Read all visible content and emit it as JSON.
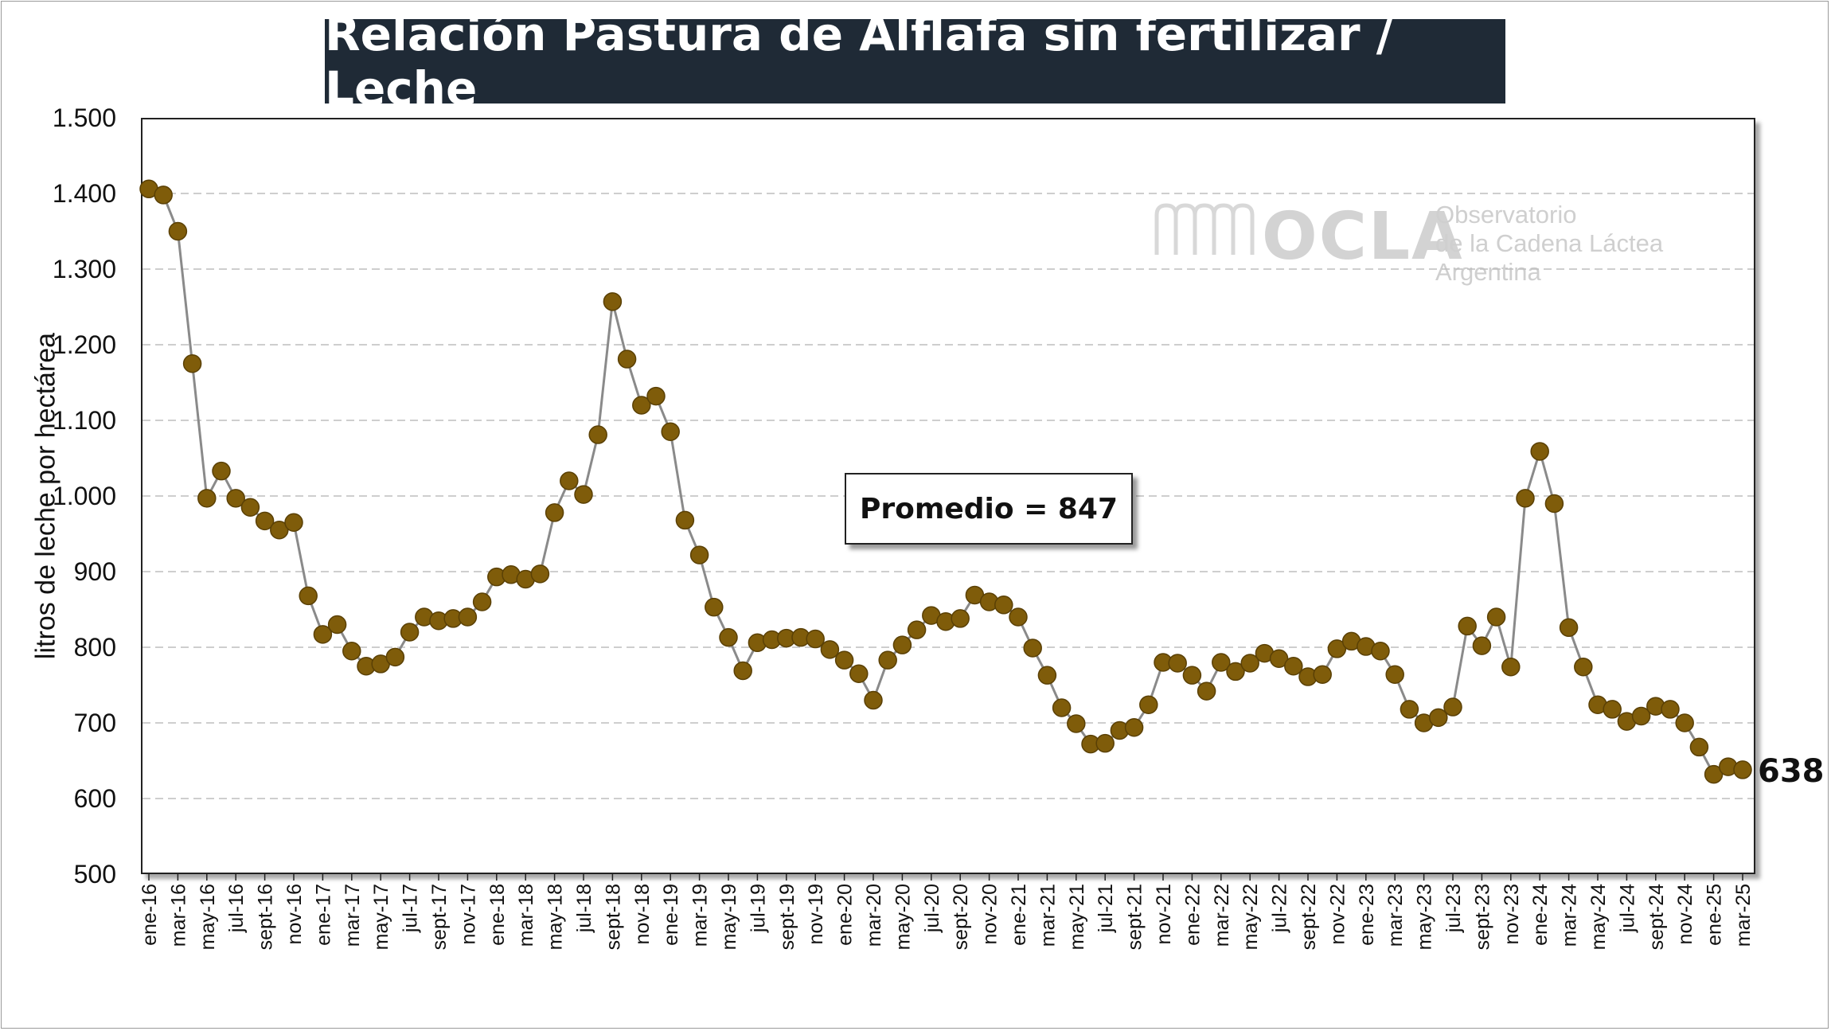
{
  "title": "Relación Pastura de Alflafa sin fertilizar / Leche",
  "ylabel": "litros de leche por hectárea",
  "average_label": "Promedio = 847",
  "last_value_label": "638",
  "logo": {
    "name": "OCLA",
    "line1": "Observatorio",
    "line2": "de la Cadena Láctea",
    "line3": "Argentina"
  },
  "colors": {
    "marker": "#7f5c0a",
    "marker_edge": "#5a4005",
    "line": "#8a8a8a",
    "title_bg": "#1f2a36",
    "grid": "#bdbdbd"
  },
  "chart_data": {
    "type": "line",
    "title": "Relación Pastura de Alflafa sin fertilizar / Leche",
    "xlabel": "",
    "ylabel": "litros de leche por hectárea",
    "ylim": [
      500,
      1500
    ],
    "yticks": [
      500,
      600,
      700,
      800,
      900,
      1000,
      1100,
      1200,
      1300,
      1400,
      1500
    ],
    "ytick_labels": [
      "500",
      "600",
      "700",
      "800",
      "900",
      "1.000",
      "1.100",
      "1.200",
      "1.300",
      "1.400",
      "1.500"
    ],
    "grid": "horizontal dashed",
    "x_tick_labels": [
      "ene-16",
      "mar-16",
      "may-16",
      "jul-16",
      "sept-16",
      "nov-16",
      "ene-17",
      "mar-17",
      "may-17",
      "jul-17",
      "sept-17",
      "nov-17",
      "ene-18",
      "mar-18",
      "may-18",
      "jul-18",
      "sept-18",
      "nov-18",
      "ene-19",
      "mar-19",
      "may-19",
      "jul-19",
      "sept-19",
      "nov-19",
      "ene-20",
      "mar-20",
      "may-20",
      "jul-20",
      "sept-20",
      "nov-20",
      "ene-21",
      "mar-21",
      "may-21",
      "jul-21",
      "sept-21",
      "nov-21",
      "ene-22",
      "mar-22",
      "may-22",
      "jul-22",
      "sept-22",
      "nov-22",
      "ene-23",
      "mar-23",
      "may-23",
      "jul-23",
      "sept-23",
      "nov-23",
      "ene-24",
      "mar-24",
      "may-24",
      "jul-24",
      "sept-24",
      "nov-24",
      "ene-25",
      "mar-25"
    ],
    "series": [
      {
        "values": [
          1406,
          1398,
          1350,
          1175,
          997,
          1033,
          997,
          985,
          967,
          955,
          965,
          868,
          817,
          830,
          795,
          775,
          778,
          787,
          820,
          840,
          835,
          838,
          840,
          860,
          893,
          896,
          890,
          897,
          978,
          1020,
          1002,
          1081,
          1257,
          1181,
          1120,
          1132,
          1085,
          968,
          922,
          853,
          813,
          769,
          806,
          810,
          812,
          813,
          811,
          797,
          783,
          765,
          730,
          783,
          803,
          823,
          842,
          834,
          838,
          869,
          860,
          856,
          840,
          799,
          763,
          720,
          699,
          672,
          673,
          690,
          694,
          724,
          780,
          779,
          763,
          742,
          780,
          768,
          779,
          792,
          785,
          775,
          761,
          764,
          798,
          808,
          801,
          795,
          764,
          718,
          700,
          707,
          721,
          828,
          802,
          840,
          774,
          997,
          1059,
          990,
          826,
          774,
          724,
          718,
          702,
          709,
          722,
          718,
          700,
          668,
          632,
          642,
          638
        ]
      }
    ]
  }
}
